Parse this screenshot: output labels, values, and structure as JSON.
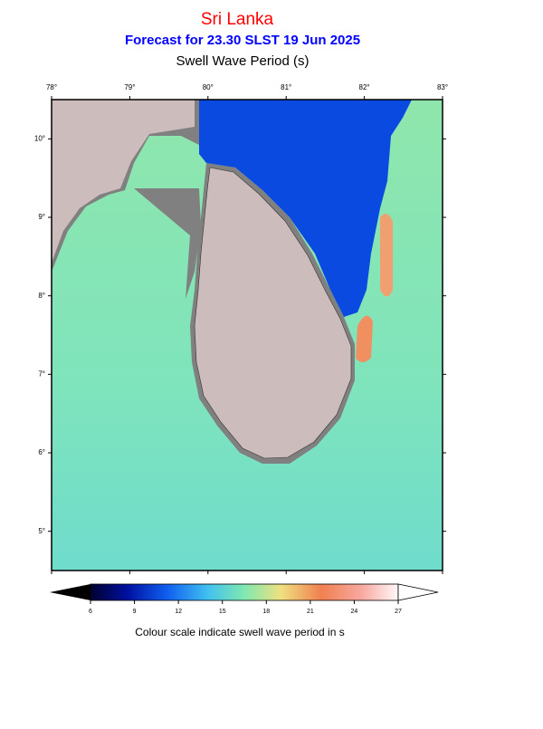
{
  "header": {
    "title": "Sri Lanka",
    "subtitle": "Forecast for  23.30 SLST 19 Jun 2025",
    "variable": "Swell Wave Period (s)"
  },
  "map": {
    "xlim": [
      78,
      83
    ],
    "ylim": [
      4.5,
      10.5
    ],
    "xticks": [
      {
        "value": 78,
        "label": "78°"
      },
      {
        "value": 79,
        "label": "79°"
      },
      {
        "value": 80,
        "label": "80°"
      },
      {
        "value": 81,
        "label": "81°"
      },
      {
        "value": 82,
        "label": "82°"
      },
      {
        "value": 83,
        "label": "83°"
      }
    ],
    "yticks": [
      {
        "value": 5,
        "label": "5°"
      },
      {
        "value": 6,
        "label": "6°"
      },
      {
        "value": 7,
        "label": "7°"
      },
      {
        "value": 8,
        "label": "8°"
      },
      {
        "value": 9,
        "label": "9°"
      },
      {
        "value": 10,
        "label": "10°"
      }
    ]
  },
  "colorbar": {
    "ticks": [
      6,
      9,
      12,
      15,
      18,
      21,
      24,
      27
    ],
    "caption": "Colour scale indicate swell wave period in s"
  }
}
